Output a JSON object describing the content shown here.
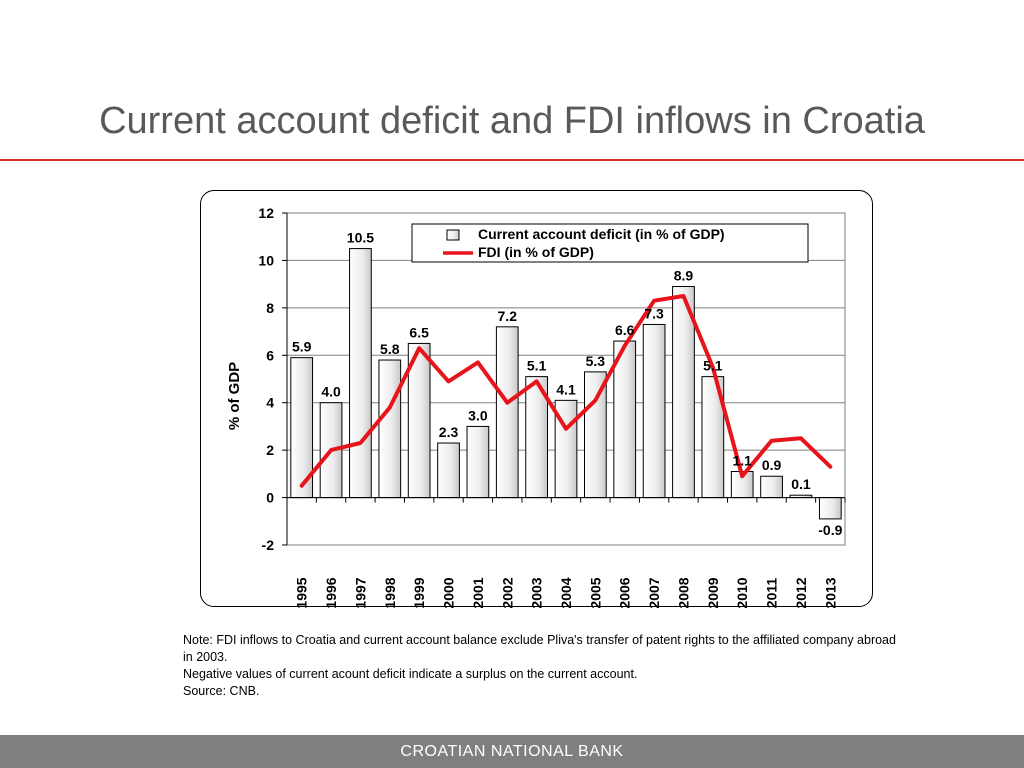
{
  "slide": {
    "title": "Current account deficit and FDI inflows in Croatia",
    "notes": [
      "Note: FDI inflows to Croatia and current account balance exclude Pliva's transfer of patent rights to the affiliated company abroad in 2003.",
      "Negative values of current acount deficit indicate a surplus on the current account.",
      "Source: CNB."
    ],
    "footer": "CROATIAN NATIONAL BANK"
  },
  "colors": {
    "line": "#e8141b",
    "bar_fill_light": "#ffffff",
    "bar_fill_dark": "#c8c8c8",
    "title_rule": "#d9302c",
    "footer_bg": "#7f7f7f"
  },
  "chart_data": {
    "type": "bar",
    "title": "",
    "xlabel": "",
    "ylabel": "% of GDP",
    "ylim": [
      -2,
      12
    ],
    "yticks": [
      -2,
      0,
      2,
      4,
      6,
      8,
      10,
      12
    ],
    "legend_position": "top-right",
    "categories": [
      "1995",
      "1996",
      "1997",
      "1998",
      "1999",
      "2000",
      "2001",
      "2002",
      "2003",
      "2004",
      "2005",
      "2006",
      "2007",
      "2008",
      "2009",
      "2010",
      "2011",
      "2012",
      "2013"
    ],
    "series": [
      {
        "name": "Current account deficit (in % of GDP)",
        "type": "bar",
        "values": [
          5.9,
          4.0,
          10.5,
          5.8,
          6.5,
          2.3,
          3.0,
          7.2,
          5.1,
          4.1,
          5.3,
          6.6,
          7.3,
          8.9,
          5.1,
          1.1,
          0.9,
          0.1,
          -0.9
        ],
        "labels": [
          "5.9",
          "4.0",
          "10.5",
          "5.8",
          "6.5",
          "2.3",
          "3.0",
          "7.2",
          "5.1",
          "4.1",
          "5.3",
          "6.6",
          "7.3",
          "8.9",
          "5.1",
          "1.1",
          "0.9",
          "0.1",
          "-0.9"
        ]
      },
      {
        "name": "FDI (in % of GDP)",
        "type": "line",
        "values": [
          0.5,
          2.0,
          2.3,
          3.8,
          6.3,
          4.9,
          5.7,
          4.0,
          4.9,
          2.9,
          4.1,
          6.4,
          8.3,
          8.5,
          5.5,
          0.9,
          2.4,
          2.5,
          1.3
        ]
      }
    ]
  }
}
